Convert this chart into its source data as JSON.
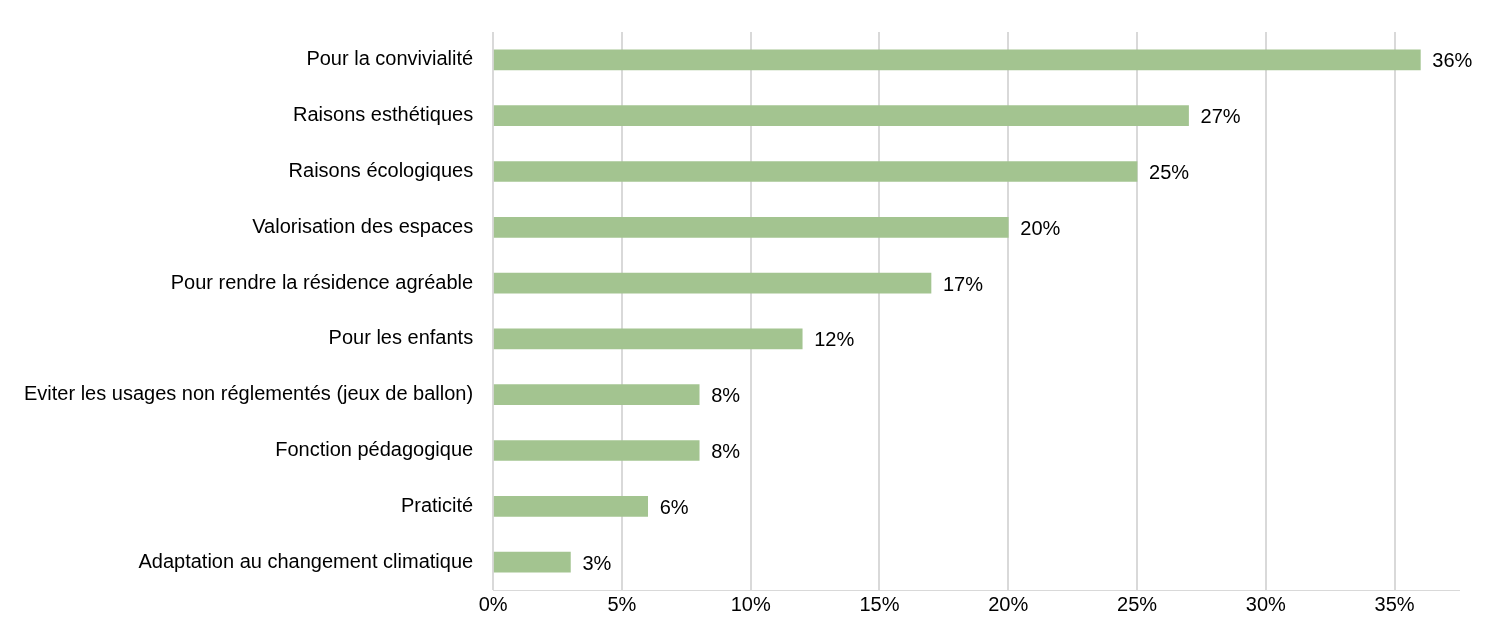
{
  "chart_data": {
    "type": "bar",
    "orientation": "horizontal",
    "categories": [
      "Pour la convivialité",
      "Raisons esthétiques",
      "Raisons écologiques",
      "Valorisation des espaces",
      "Pour rendre la résidence agréable",
      "Pour les enfants",
      "Eviter les usages non réglementés (jeux de ballon)",
      "Fonction pédagogique",
      "Praticité",
      "Adaptation au changement climatique"
    ],
    "values": [
      36,
      27,
      25,
      20,
      17,
      12,
      8,
      8,
      6,
      3
    ],
    "value_labels": [
      "36%",
      "27%",
      "25%",
      "20%",
      "17%",
      "12%",
      "8%",
      "8%",
      "6%",
      "3%"
    ],
    "color": "#a3c490",
    "xlim": [
      0,
      37.5
    ],
    "xticks": [
      {
        "value": 0,
        "label": "0%"
      },
      {
        "value": 5,
        "label": "5%"
      },
      {
        "value": 10,
        "label": "10%"
      },
      {
        "value": 15,
        "label": "15%"
      },
      {
        "value": 20,
        "label": "20%"
      },
      {
        "value": 25,
        "label": "25%"
      },
      {
        "value": 30,
        "label": "30%"
      },
      {
        "value": 35,
        "label": "35%"
      }
    ],
    "grid": "x"
  }
}
